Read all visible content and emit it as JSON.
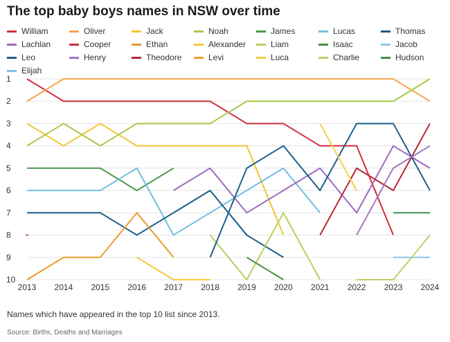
{
  "title": "The top baby boys names in NSW over time",
  "note": "Names which have appeared in the top 10 list since 2013.",
  "source": "Source: Births, Deaths and Marriages",
  "chart_data": {
    "type": "line",
    "title": "The top baby boys names in NSW over time",
    "xlabel": "",
    "ylabel": "",
    "x": [
      2013,
      2014,
      2015,
      2016,
      2017,
      2018,
      2019,
      2020,
      2021,
      2022,
      2023,
      2024
    ],
    "y_ticks": [
      1,
      2,
      3,
      4,
      5,
      6,
      7,
      8,
      9,
      10
    ],
    "ylim": [
      1,
      10
    ],
    "y_inverted": true,
    "grid": true,
    "legend_position": "top",
    "series": [
      {
        "name": "William",
        "color": "#d12e3e",
        "values": [
          1,
          2,
          2,
          2,
          2,
          2,
          3,
          3,
          4,
          4,
          8,
          null
        ]
      },
      {
        "name": "Oliver",
        "color": "#f4a64e",
        "values": [
          2,
          1,
          1,
          1,
          1,
          1,
          1,
          1,
          1,
          1,
          1,
          2
        ]
      },
      {
        "name": "Jack",
        "color": "#f1c533",
        "values": [
          3,
          4,
          3,
          4,
          4,
          4,
          4,
          8,
          null,
          null,
          null,
          null
        ]
      },
      {
        "name": "Noah",
        "color": "#a6c94a",
        "values": [
          4,
          3,
          4,
          3,
          3,
          3,
          2,
          2,
          2,
          2,
          2,
          1
        ]
      },
      {
        "name": "James",
        "color": "#4a9a4a",
        "values": [
          5,
          5,
          5,
          6,
          5,
          null,
          null,
          null,
          null,
          null,
          null,
          null
        ]
      },
      {
        "name": "Lucas",
        "color": "#72bde0",
        "values": [
          6,
          6,
          6,
          5,
          8,
          7,
          6,
          5,
          7,
          null,
          null,
          null
        ]
      },
      {
        "name": "Thomas",
        "color": "#1a5a86",
        "values": [
          7,
          7,
          7,
          8,
          7,
          6,
          8,
          9,
          null,
          null,
          null,
          null
        ]
      },
      {
        "name": "Lachlan",
        "color": "#9b6bbd",
        "values": [
          null,
          null,
          null,
          null,
          6,
          5,
          7,
          6,
          5,
          7,
          4,
          5
        ]
      },
      {
        "name": "Cooper",
        "color": "#c8323f",
        "values": [
          8,
          null,
          null,
          null,
          null,
          null,
          null,
          null,
          null,
          null,
          null,
          null
        ]
      },
      {
        "name": "Ethan",
        "color": "#eb9a2a",
        "values": [
          10,
          9,
          9,
          7,
          9,
          null,
          null,
          null,
          null,
          null,
          null,
          null
        ]
      },
      {
        "name": "Alexander",
        "color": "#f3c93f",
        "values": [
          null,
          null,
          null,
          9,
          10,
          10,
          null,
          null,
          null,
          null,
          null,
          null
        ]
      },
      {
        "name": "Liam",
        "color": "#b4d15c",
        "values": [
          null,
          null,
          null,
          null,
          null,
          8,
          10,
          7,
          10,
          null,
          null,
          null
        ]
      },
      {
        "name": "Isaac",
        "color": "#45923f",
        "values": [
          null,
          null,
          null,
          null,
          null,
          null,
          9,
          10,
          null,
          null,
          null,
          null
        ]
      },
      {
        "name": "Jacob",
        "color": "#86c7e6",
        "values": [
          null,
          null,
          null,
          null,
          null,
          null,
          null,
          null,
          null,
          null,
          9,
          9
        ]
      },
      {
        "name": "Leo",
        "color": "#1d5f8c",
        "values": [
          null,
          null,
          null,
          null,
          null,
          9,
          5,
          4,
          6,
          3,
          3,
          6
        ]
      },
      {
        "name": "Henry",
        "color": "#a377c4",
        "values": [
          null,
          null,
          null,
          null,
          null,
          null,
          null,
          null,
          null,
          null,
          null,
          null
        ]
      },
      {
        "name": "Theodore",
        "color": "#b52636",
        "values": [
          null,
          null,
          null,
          null,
          null,
          null,
          null,
          null,
          8,
          5,
          6,
          3
        ]
      },
      {
        "name": "Levi",
        "color": "#ee9c35",
        "values": [
          null,
          null,
          null,
          null,
          null,
          null,
          null,
          null,
          null,
          null,
          null,
          null
        ]
      },
      {
        "name": "Luca",
        "color": "#f5cf4a",
        "values": [
          null,
          null,
          null,
          null,
          null,
          null,
          null,
          null,
          3,
          6,
          null,
          null
        ]
      },
      {
        "name": "Charlie",
        "color": "#b8d468",
        "values": [
          null,
          null,
          null,
          null,
          null,
          null,
          null,
          null,
          null,
          10,
          10,
          8
        ]
      },
      {
        "name": "Hudson",
        "color": "#3f8f4a",
        "values": [
          null,
          null,
          null,
          null,
          null,
          null,
          null,
          null,
          null,
          null,
          7,
          7
        ]
      },
      {
        "name": "Elijah",
        "color": "#7fc1e3",
        "values": [
          null,
          null,
          null,
          null,
          null,
          null,
          null,
          null,
          null,
          null,
          null,
          null
        ]
      }
    ],
    "extra_segments": [
      {
        "series": "Henry",
        "values": [
          null,
          null,
          null,
          null,
          null,
          null,
          null,
          null,
          null,
          8,
          5,
          4
        ]
      }
    ]
  }
}
